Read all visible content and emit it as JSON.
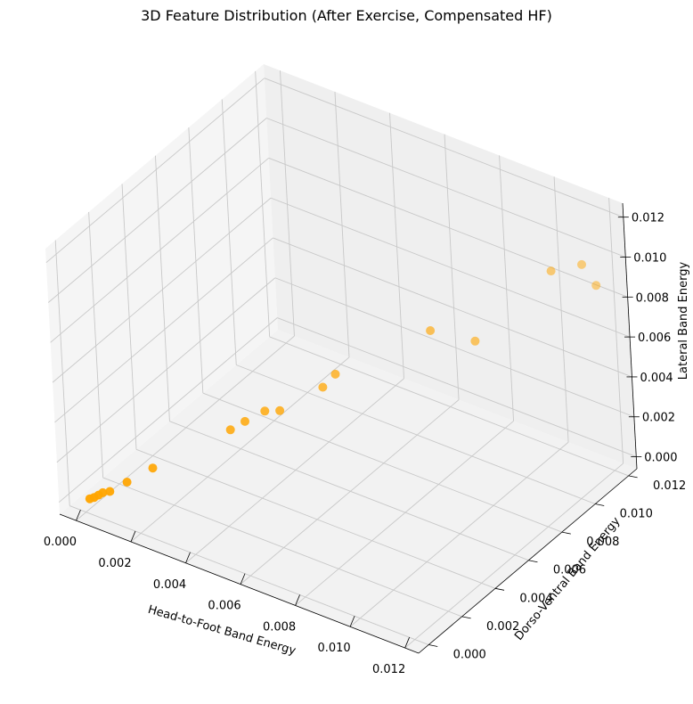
{
  "chart_data": {
    "type": "scatter",
    "projection": "3d",
    "title": "3D Feature Distribution (After Exercise, Compensated HF)",
    "xlabel": "Head-to-Foot Band Energy",
    "ylabel": "Dorso-Ventral Band Energy",
    "zlabel": "Lateral Band Energy",
    "xlim": [
      -0.0006,
      0.0125
    ],
    "ylim": [
      -0.0006,
      0.0125
    ],
    "zlim": [
      -0.0006,
      0.0127
    ],
    "xticks": [
      0.0,
      0.002,
      0.004,
      0.006,
      0.008,
      0.01,
      0.012
    ],
    "yticks": [
      0.0,
      0.002,
      0.004,
      0.006,
      0.008,
      0.01,
      0.012
    ],
    "zticks": [
      0.0,
      0.002,
      0.004,
      0.006,
      0.008,
      0.01,
      0.012
    ],
    "xtick_labels": [
      "0.000",
      "0.002",
      "0.004",
      "0.006",
      "0.008",
      "0.010",
      "0.012"
    ],
    "ytick_labels": [
      "0.000",
      "0.002",
      "0.004",
      "0.006",
      "0.008",
      "0.010",
      "0.012"
    ],
    "ztick_labels": [
      "0.000",
      "0.002",
      "0.004",
      "0.006",
      "0.008",
      "0.010",
      "0.012"
    ],
    "grid": true,
    "marker_color": "#ffa500",
    "points": [
      {
        "x": 0.0001,
        "y": 0.0001,
        "z": 5e-05
      },
      {
        "x": 0.0002,
        "y": 0.0002,
        "z": 0.0001
      },
      {
        "x": 0.0003,
        "y": 0.0003,
        "z": 0.0002
      },
      {
        "x": 0.0004,
        "y": 0.0004,
        "z": 0.0003
      },
      {
        "x": 0.0006,
        "y": 0.0005,
        "z": 0.0004
      },
      {
        "x": 0.001,
        "y": 0.0009,
        "z": 0.0008
      },
      {
        "x": 0.0016,
        "y": 0.0015,
        "z": 0.0014
      },
      {
        "x": 0.0034,
        "y": 0.0033,
        "z": 0.003
      },
      {
        "x": 0.0037,
        "y": 0.0037,
        "z": 0.0033
      },
      {
        "x": 0.0042,
        "y": 0.0041,
        "z": 0.0038
      },
      {
        "x": 0.0045,
        "y": 0.0045,
        "z": 0.0037
      },
      {
        "x": 0.0055,
        "y": 0.0055,
        "z": 0.0047
      },
      {
        "x": 0.0058,
        "y": 0.0058,
        "z": 0.0053
      },
      {
        "x": 0.008,
        "y": 0.008,
        "z": 0.0071
      },
      {
        "x": 0.009,
        "y": 0.009,
        "z": 0.0064
      },
      {
        "x": 0.0108,
        "y": 0.0108,
        "z": 0.0096
      },
      {
        "x": 0.0115,
        "y": 0.0115,
        "z": 0.0098
      },
      {
        "x": 0.0118,
        "y": 0.0118,
        "z": 0.0087
      }
    ]
  }
}
